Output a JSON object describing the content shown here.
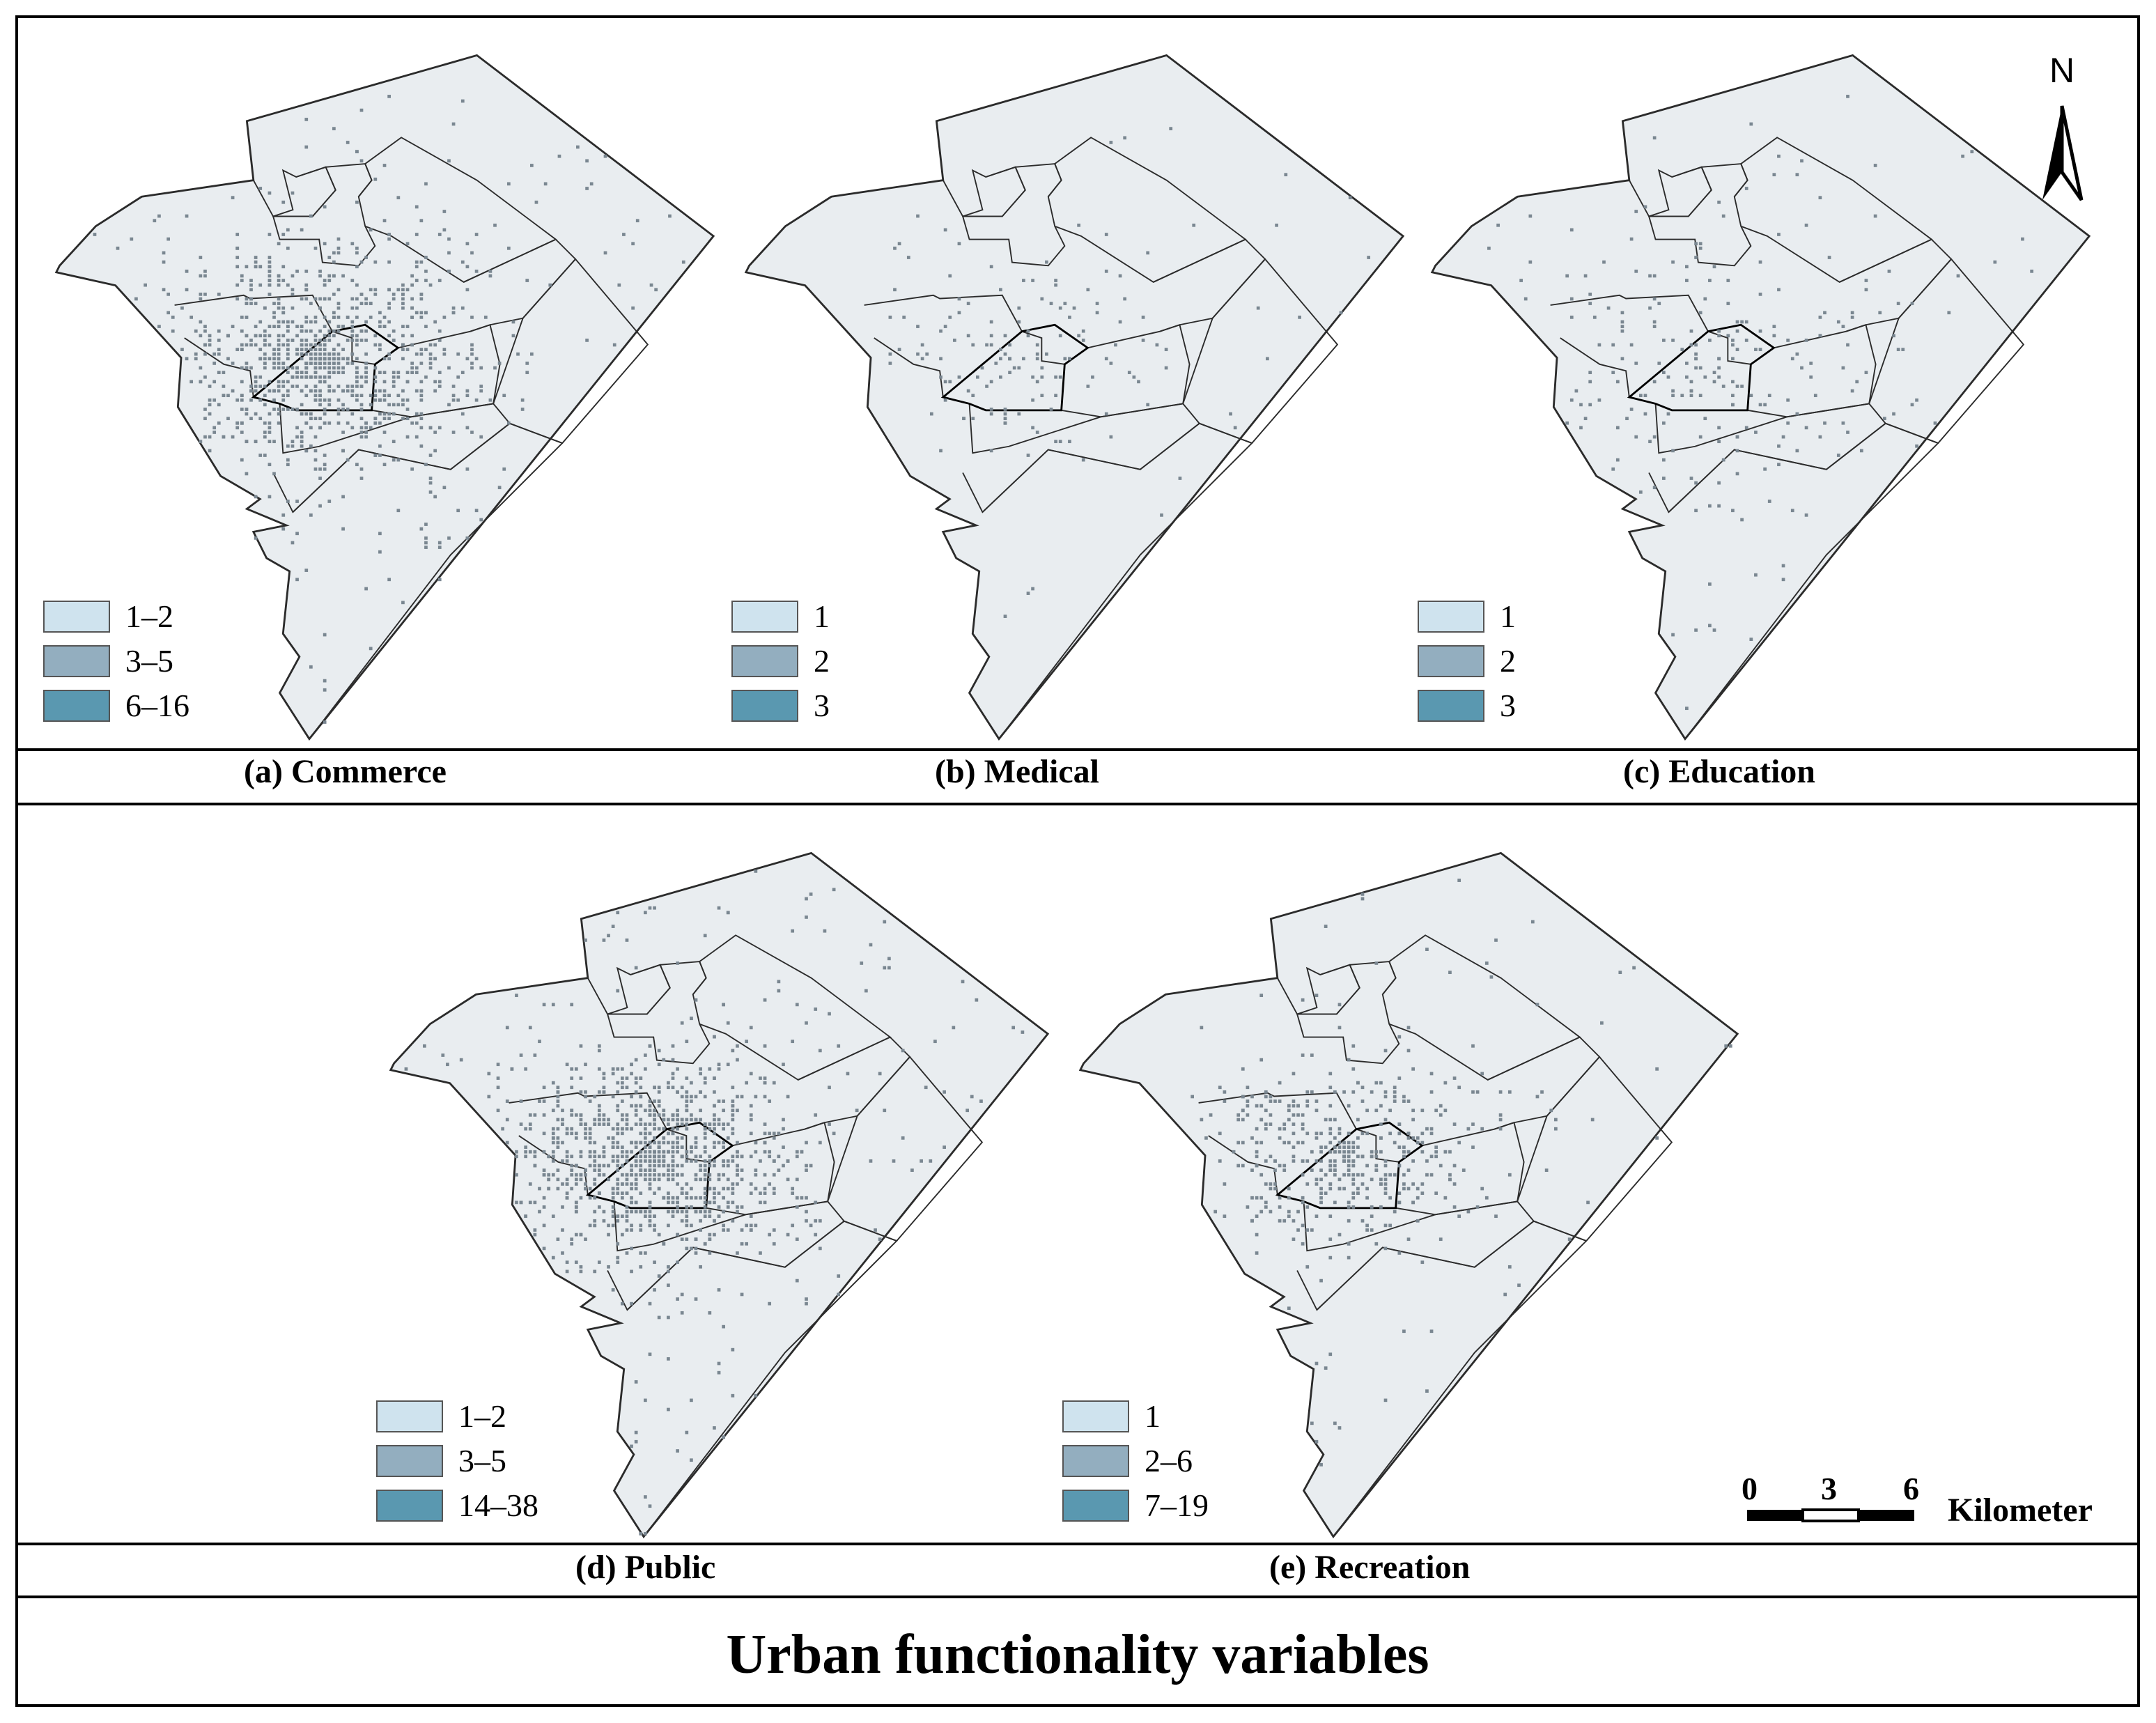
{
  "title": "Urban functionality variables",
  "colors": {
    "background": "#e9edf0",
    "boundary": "#2b2b2b",
    "class_low": "#cfe3ee",
    "class_mid": "#93aebf",
    "class_high": "#5a98b0",
    "dot": "#7a8791"
  },
  "panels": [
    {
      "caption": "(a) Commerce",
      "legend": [
        "1–2",
        "3–5",
        "6–16"
      ]
    },
    {
      "caption": "(b) Medical",
      "legend": [
        "1",
        "2",
        "3"
      ]
    },
    {
      "caption": "(c) Education",
      "legend": [
        "1",
        "2",
        "3"
      ]
    },
    {
      "caption": "(d) Public",
      "legend": [
        "1–2",
        "3–5",
        "14–38"
      ]
    },
    {
      "caption": "(e) Recreation",
      "legend": [
        "1",
        "2–6",
        "7–19"
      ]
    }
  ],
  "north_arrow": {
    "label": "N",
    "icon": "north-arrow-icon"
  },
  "scale_bar": {
    "ticks": [
      "0",
      "3",
      "6"
    ],
    "unit": "Kilometer"
  }
}
